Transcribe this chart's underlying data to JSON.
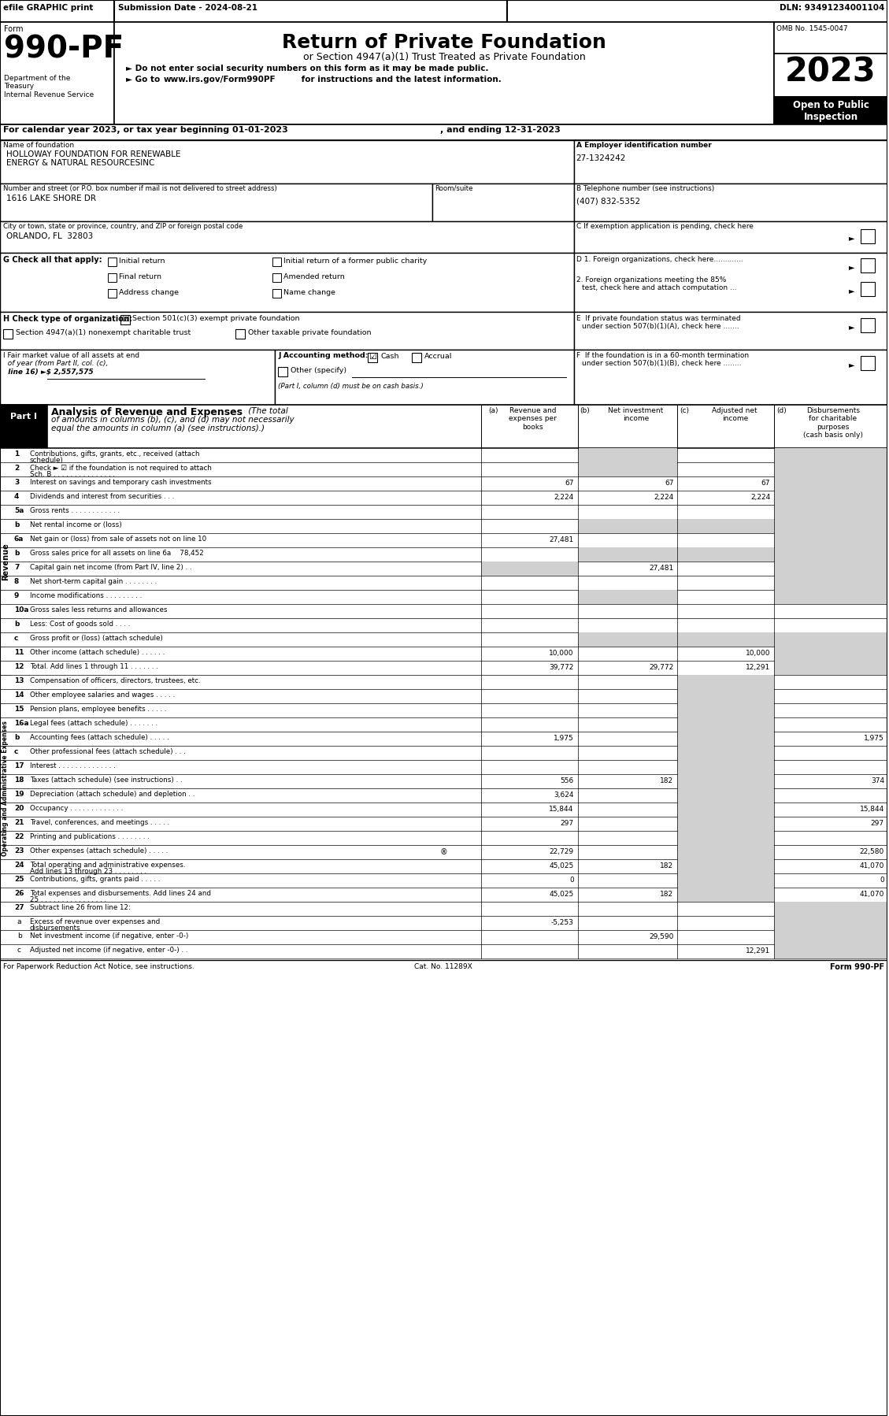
{
  "title_bar": "efile GRAPHIC print    Submission Date - 2024-08-21                                                        DLN: 93491234001104",
  "form_number": "990-PF",
  "form_label": "Form",
  "dept_text": "Department of the\nTreasury\nInternal Revenue Service",
  "main_title": "Return of Private Foundation",
  "subtitle": "or Section 4947(a)(1) Trust Treated as Private Foundation",
  "bullet1": "► Do not enter social security numbers on this form as it may be made public.",
  "bullet2": "► Go to www.irs.gov/Form990PF for instructions and the latest information.",
  "omb": "OMB No. 1545-0047",
  "year": "2023",
  "open_public": "Open to Public\nInspection",
  "cal_year_text": "For calendar year 2023, or tax year beginning 01-01-2023",
  "ending_text": ", and ending 12-31-2023",
  "name_label": "Name of foundation",
  "name_value1": "HOLLOWAY FOUNDATION FOR RENEWABLE",
  "name_value2": "ENERGY & NATURAL RESOURCESINC",
  "ein_label": "A Employer identification number",
  "ein_value": "27-1324242",
  "addr_label": "Number and street (or P.O. box number if mail is not delivered to street address)",
  "addr_room": "Room/suite",
  "addr_value": "1616 LAKE SHORE DR",
  "phone_label": "B Telephone number (see instructions)",
  "phone_value": "(407) 832-5352",
  "city_label": "City or town, state or province, country, and ZIP or foreign postal code",
  "city_value": "ORLANDO, FL  32803",
  "c_label": "C If exemption application is pending, check here",
  "g_label": "G Check all that apply:",
  "g_options": [
    "Initial return",
    "Initial return of a former public charity",
    "Final return",
    "Amended return",
    "Address change",
    "Name change"
  ],
  "d1_label": "D 1. Foreign organizations, check here.............",
  "d2_label": "2. Foreign organizations meeting the 85%\n    test, check here and attach computation ...",
  "e_label": "E  If private foundation status was terminated\n    under section 507(b)(1)(A), check here .......",
  "h_label": "H Check type of organization:",
  "h_checked": "Section 501(c)(3) exempt private foundation",
  "h_unchecked1": "Section 4947(a)(1) nonexempt charitable trust",
  "h_unchecked2": "Other taxable private foundation",
  "i_label": "I Fair market value of all assets at end\n  of year (from Part II, col. (c),\n  line 16) ►$ 2,557,575",
  "j_label": "J Accounting method:",
  "j_cash": "Cash",
  "j_accrual": "Accrual",
  "j_other": "Other (specify)",
  "j_note": "(Part I, column (d) must be on cash basis.)",
  "f_label": "F  If the foundation is in a 60-month termination\n    under section 507(b)(1)(B), check here ........",
  "part1_label": "Part I",
  "part1_title": "Analysis of Revenue and Expenses",
  "part1_subtitle": "(The total\nof amounts in columns (b), (c), and (d) may not necessarily\nequal the amounts in column (a) (see instructions).)",
  "col_a": "Revenue and\nexpenses per\nbooks",
  "col_b": "Net investment\nincome",
  "col_c": "Adjusted net\nincome",
  "col_d": "Disbursements\nfor charitable\npurposes\n(cash basis only)",
  "revenue_rows": [
    {
      "num": "1",
      "label": "Contributions, gifts, grants, etc., received (attach\nschedule)",
      "a": "",
      "b": "",
      "c": "",
      "d": "",
      "shaded_b": true,
      "shaded_c": false,
      "shaded_d": true
    },
    {
      "num": "2",
      "label": "Check ► ☑ if the foundation is not required to attach\nSch. B . . . . . . . . . . . . . . .",
      "a": "",
      "b": "",
      "c": "",
      "d": "",
      "shaded_b": true,
      "shaded_c": false,
      "shaded_d": true
    },
    {
      "num": "3",
      "label": "Interest on savings and temporary cash investments",
      "a": "67",
      "b": "67",
      "c": "67",
      "d": "",
      "shaded_d": true
    },
    {
      "num": "4",
      "label": "Dividends and interest from securities . . .",
      "a": "2,224",
      "b": "2,224",
      "c": "2,224",
      "d": "",
      "shaded_d": true
    },
    {
      "num": "5a",
      "label": "Gross rents . . . . . . . . . . . .",
      "a": "",
      "b": "",
      "c": "",
      "d": "",
      "shaded_d": true
    },
    {
      "num": "b",
      "label": "Net rental income or (loss)",
      "a": "",
      "b": "",
      "c": "",
      "d": "",
      "shaded_b": true,
      "shaded_c": true,
      "shaded_d": true
    },
    {
      "num": "6a",
      "label": "Net gain or (loss) from sale of assets not on line 10",
      "a": "27,481",
      "b": "",
      "c": "",
      "d": "",
      "shaded_b": false,
      "shaded_c": false,
      "shaded_d": true
    },
    {
      "num": "b",
      "label": "Gross sales price for all assets on line 6a    78,452",
      "a": "",
      "b": "",
      "c": "",
      "d": "",
      "shaded_b": true,
      "shaded_c": true,
      "shaded_d": true
    },
    {
      "num": "7",
      "label": "Capital gain net income (from Part IV, line 2) . .",
      "a": "",
      "b": "27,481",
      "c": "",
      "d": "",
      "shaded_a": true,
      "shaded_d": true
    },
    {
      "num": "8",
      "label": "Net short-term capital gain . . . . . . . .",
      "a": "",
      "b": "",
      "c": "",
      "d": "",
      "shaded_d": true
    },
    {
      "num": "9",
      "label": "Income modifications . . . . . . . . .",
      "a": "",
      "b": "",
      "c": "",
      "d": "",
      "shaded_b": true,
      "shaded_d": true
    },
    {
      "num": "10a",
      "label": "Gross sales less returns and allowances",
      "a": "",
      "b": "",
      "c": "",
      "d": ""
    },
    {
      "num": "b",
      "label": "Less: Cost of goods sold . . . .",
      "a": "",
      "b": "",
      "c": "",
      "d": ""
    },
    {
      "num": "c",
      "label": "Gross profit or (loss) (attach schedule)",
      "a": "",
      "b": "",
      "c": "",
      "d": "",
      "shaded_b": true,
      "shaded_c": true,
      "shaded_d": true
    },
    {
      "num": "11",
      "label": "Other income (attach schedule) . . . . . .",
      "a": "10,000",
      "b": "",
      "c": "10,000",
      "d": "",
      "shaded_d": true
    },
    {
      "num": "12",
      "label": "Total. Add lines 1 through 11 . . . . . . .",
      "a": "39,772",
      "b": "29,772",
      "c": "12,291",
      "d": "",
      "shaded_d": true
    }
  ],
  "expense_rows": [
    {
      "num": "13",
      "label": "Compensation of officers, directors, trustees, etc.",
      "a": "",
      "b": "",
      "c": "",
      "d": ""
    },
    {
      "num": "14",
      "label": "Other employee salaries and wages . . . . .",
      "a": "",
      "b": "",
      "c": "",
      "d": ""
    },
    {
      "num": "15",
      "label": "Pension plans, employee benefits . . . . .",
      "a": "",
      "b": "",
      "c": "",
      "d": ""
    },
    {
      "num": "16a",
      "label": "Legal fees (attach schedule) . . . . . . .",
      "a": "",
      "b": "",
      "c": "",
      "d": ""
    },
    {
      "num": "b",
      "label": "Accounting fees (attach schedule) . . . . .",
      "a": "1,975",
      "b": "",
      "c": "",
      "d": "1,975"
    },
    {
      "num": "c",
      "label": "Other professional fees (attach schedule) . . .",
      "a": "",
      "b": "",
      "c": "",
      "d": ""
    },
    {
      "num": "17",
      "label": "Interest . . . . . . . . . . . . . .",
      "a": "",
      "b": "",
      "c": "",
      "d": ""
    },
    {
      "num": "18",
      "label": "Taxes (attach schedule) (see instructions) . .",
      "a": "556",
      "b": "182",
      "c": "",
      "d": "374"
    },
    {
      "num": "19",
      "label": "Depreciation (attach schedule) and depletion . .",
      "a": "3,624",
      "b": "",
      "c": "",
      "d": ""
    },
    {
      "num": "20",
      "label": "Occupancy . . . . . . . . . . . . .",
      "a": "15,844",
      "b": "",
      "c": "",
      "d": "15,844"
    },
    {
      "num": "21",
      "label": "Travel, conferences, and meetings . . . . .",
      "a": "297",
      "b": "",
      "c": "",
      "d": "297"
    },
    {
      "num": "22",
      "label": "Printing and publications . . . . . . . .",
      "a": "",
      "b": "",
      "c": "",
      "d": ""
    },
    {
      "num": "23",
      "label": "Other expenses (attach schedule) . . . . .",
      "a": "22,729",
      "b": "",
      "c": "",
      "d": "22,580"
    },
    {
      "num": "24",
      "label": "Total operating and administrative expenses.\nAdd lines 13 through 23 . . . . . . . .",
      "a": "45,025",
      "b": "182",
      "c": "",
      "d": "41,070"
    },
    {
      "num": "25",
      "label": "Contributions, gifts, grants paid . . . . .",
      "a": "0",
      "b": "",
      "c": "",
      "d": "0"
    },
    {
      "num": "26",
      "label": "Total expenses and disbursements. Add lines 24 and\n25 . . . . . . . . . . . . . . . .",
      "a": "45,025",
      "b": "182",
      "c": "",
      "d": "41,070"
    }
  ],
  "subtotal_rows": [
    {
      "num": "27",
      "label": "Subtract line 26 from line 12:",
      "a": "",
      "b": "",
      "c": "",
      "d": ""
    },
    {
      "num": "a",
      "label": "Excess of revenue over expenses and\ndisbursements",
      "a": "-5,253",
      "b": "",
      "c": "",
      "d": ""
    },
    {
      "num": "b",
      "label": "Net investment income (if negative, enter -0-)",
      "a": "",
      "b": "29,590",
      "c": "",
      "d": ""
    },
    {
      "num": "c",
      "label": "Adjusted net income (if negative, enter -0-) . .",
      "a": "",
      "b": "",
      "c": "12,291",
      "d": ""
    }
  ],
  "footer_left": "For Paperwork Reduction Act Notice, see instructions.",
  "footer_cat": "Cat. No. 11289X",
  "footer_right": "Form 990-PF",
  "bg_color": "#ffffff",
  "header_bg": "#000000",
  "shaded_color": "#d0d0d0",
  "part_header_bg": "#000000",
  "revenue_label_bg": "#c8c8c8",
  "expense_label_bg": "#c8c8c8"
}
